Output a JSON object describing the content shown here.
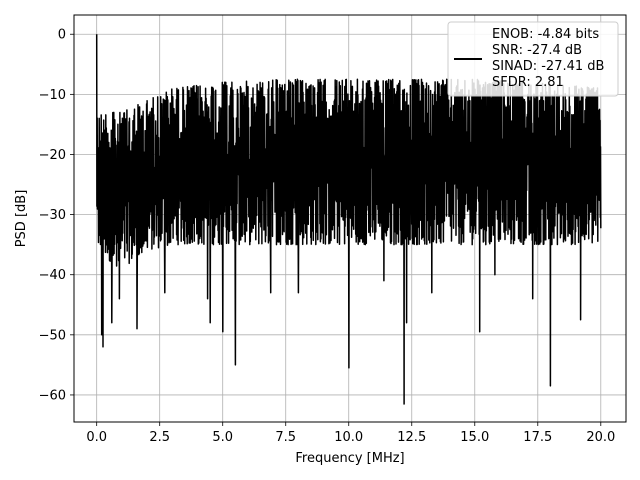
{
  "chart_data": {
    "type": "line",
    "title": "",
    "xlabel": "Frequency [MHz]",
    "ylabel": "PSD [dB]",
    "xlim": [
      -0.9,
      21.0
    ],
    "ylim": [
      -64.5,
      3.2
    ],
    "x_ticks": [
      0.0,
      2.5,
      5.0,
      7.5,
      10.0,
      12.5,
      15.0,
      17.5,
      20.0
    ],
    "x_tick_labels": [
      "0.0",
      "2.5",
      "5.0",
      "7.5",
      "10.0",
      "12.5",
      "15.0",
      "17.5",
      "20.0"
    ],
    "y_ticks": [
      0,
      -10,
      -20,
      -30,
      -40,
      -50,
      -60
    ],
    "y_tick_labels": [
      "0",
      "−10",
      "−20",
      "−30",
      "−40",
      "−50",
      "−60"
    ],
    "grid": true,
    "legend": {
      "placement": "top-right",
      "entries": [
        "ENOB: -4.84 bits",
        "SNR: -27.4 dB",
        "SINAD: -27.41 dB",
        "SFDR: 2.81"
      ]
    },
    "series": [
      {
        "color": "#000000",
        "x_range": [
          0.0,
          20.0
        ],
        "points": 2000,
        "envelope_x": [
          0.0,
          0.5,
          1.0,
          2.0,
          3.0,
          4.0,
          5.0,
          7.5,
          10.0,
          12.5,
          15.0,
          17.5,
          20.0
        ],
        "envelope_top": [
          -12,
          -13,
          -13,
          -11,
          -9,
          -8.5,
          -8,
          -7.5,
          -7.5,
          -7.5,
          -7.5,
          -8,
          -9
        ],
        "envelope_bottom": [
          -35,
          -38,
          -39,
          -36,
          -35,
          -35,
          -35,
          -35,
          -35,
          -35,
          -35,
          -35,
          -35
        ],
        "peaks": [
          [
            0.0,
            0.0
          ],
          [
            0.1,
            -14
          ],
          [
            0.2,
            -20
          ]
        ],
        "dips": [
          [
            0.2,
            -50
          ],
          [
            0.25,
            -52
          ],
          [
            0.6,
            -48
          ],
          [
            0.9,
            -44
          ],
          [
            1.6,
            -49
          ],
          [
            2.7,
            -43
          ],
          [
            4.4,
            -44
          ],
          [
            4.5,
            -48
          ],
          [
            5.0,
            -49.5
          ],
          [
            5.5,
            -55
          ],
          [
            6.9,
            -43
          ],
          [
            8.0,
            -43
          ],
          [
            10.0,
            -55.5
          ],
          [
            11.4,
            -41
          ],
          [
            12.2,
            -61.5
          ],
          [
            12.3,
            -48
          ],
          [
            13.3,
            -43
          ],
          [
            15.2,
            -49.5
          ],
          [
            15.8,
            -40
          ],
          [
            17.3,
            -44
          ],
          [
            18.0,
            -58.5
          ],
          [
            19.2,
            -47.5
          ]
        ]
      }
    ]
  }
}
